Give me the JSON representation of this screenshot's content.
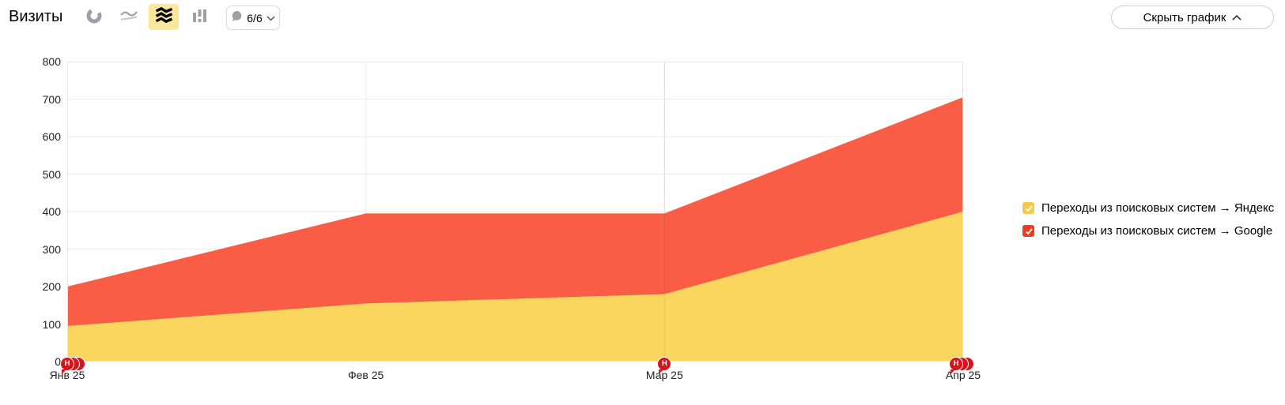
{
  "header": {
    "title": "Визиты",
    "chart_type_icons": [
      "pie-chart",
      "line-chart",
      "stacked-area-chart",
      "bar-chart"
    ],
    "selected_chart_type": "stacked-area-chart",
    "selected_icon_bg": "#FCE89B",
    "notes_dropdown_label": "6/6",
    "hide_chart_label": "Скрыть график"
  },
  "legend": [
    {
      "label": "Переходы из поисковых систем → Яндекс",
      "color": "#F6C84C"
    },
    {
      "label": "Переходы из поисковых систем → Google",
      "color": "#F5381F"
    }
  ],
  "chart_data": {
    "type": "area",
    "stacked": true,
    "title": "Визиты",
    "x": [
      "Янв 25",
      "Фев 25",
      "Мар 25",
      "Апр 25"
    ],
    "series": [
      {
        "name": "Переходы из поисковых систем → Яндекс",
        "color": "#FBD65E",
        "values": [
          95,
          155,
          180,
          400
        ]
      },
      {
        "name": "Переходы из поисковых систем → Google",
        "color": "#F95D45",
        "values": [
          105,
          240,
          215,
          305
        ]
      }
    ],
    "stacked_totals": [
      200,
      395,
      395,
      705
    ],
    "ylim": [
      0,
      800
    ],
    "yticks": [
      0,
      100,
      200,
      300,
      400,
      500,
      600,
      700,
      800
    ],
    "grid": true,
    "grid_color": "#EBEBEB",
    "border_color": "#E6E6E6",
    "legend_position": "right",
    "notes": {
      "badge_letter": "Н",
      "badge_color": "#D6141E",
      "markers": [
        {
          "x_label": "Янв 25",
          "x_index": 0,
          "count": 3
        },
        {
          "x_label": "Мар 25",
          "x_index": 2,
          "count": 1
        },
        {
          "x_label": "Апр 25",
          "x_index": 3,
          "count": 3
        }
      ]
    }
  }
}
